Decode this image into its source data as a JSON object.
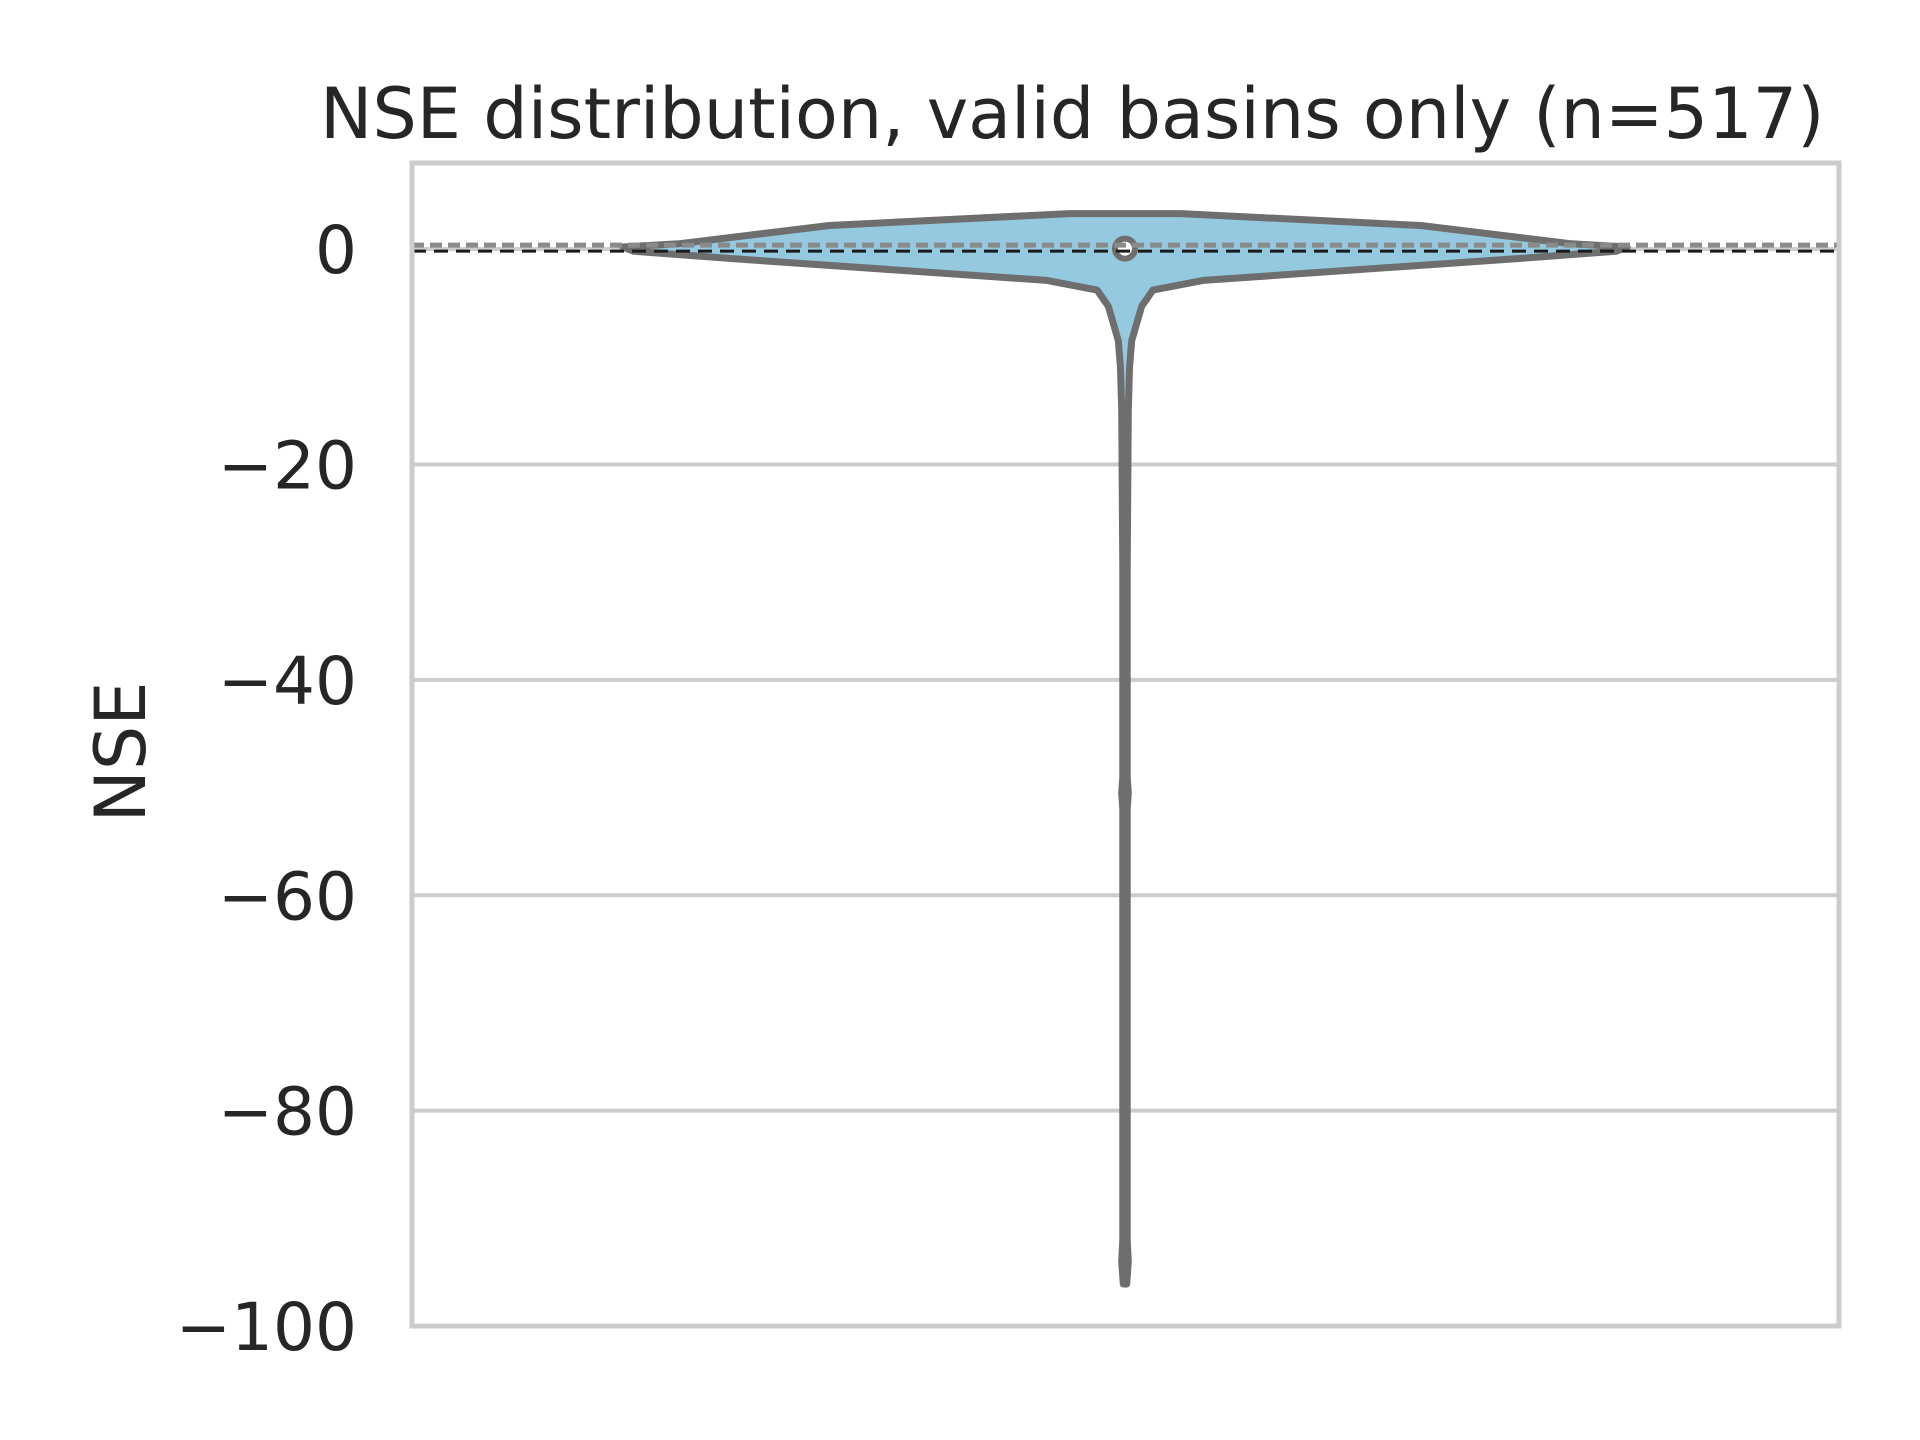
{
  "chart_data": {
    "type": "violin",
    "title": "NSE distribution, valid basins only (n=517)",
    "xlabel": "",
    "ylabel": "NSE",
    "ylim": [
      -100,
      8
    ],
    "yticks": [
      0,
      -20,
      -40,
      -60,
      -80,
      -100
    ],
    "ytick_labels": [
      "0",
      "−20",
      "−40",
      "−60",
      "−80",
      "−100"
    ],
    "grid": true,
    "reference_line": 0,
    "data_range": [
      -96.1,
      3.3
    ],
    "median": 0.05,
    "quartiles": [
      -0.3,
      0.4
    ],
    "density_profile": [
      {
        "y": 3.3,
        "rel_width": 0.1
      },
      {
        "y": 2.2,
        "rel_width": 0.53
      },
      {
        "y": 0.5,
        "rel_width": 0.8
      },
      {
        "y": 0.2,
        "rel_width": 0.9
      },
      {
        "y": -0.2,
        "rel_width": 0.88
      },
      {
        "y": -0.9,
        "rel_width": 0.7
      },
      {
        "y": -2.9,
        "rel_width": 0.14
      },
      {
        "y": -3.8,
        "rel_width": 0.05
      },
      {
        "y": -5.3,
        "rel_width": 0.03
      },
      {
        "y": -8.5,
        "rel_width": 0.012
      },
      {
        "y": -11.0,
        "rel_width": 0.008
      },
      {
        "y": -15.0,
        "rel_width": 0.006
      },
      {
        "y": -30.0,
        "rel_width": 0.004
      },
      {
        "y": -49.0,
        "rel_width": 0.004
      },
      {
        "y": -50.5,
        "rel_width": 0.006
      },
      {
        "y": -52.0,
        "rel_width": 0.004
      },
      {
        "y": -70.0,
        "rel_width": 0.004
      },
      {
        "y": -92.0,
        "rel_width": 0.004
      },
      {
        "y": -94.0,
        "rel_width": 0.006
      },
      {
        "y": -96.1,
        "rel_width": 0.003
      }
    ],
    "colors": {
      "fill": "#94c9e0",
      "outline": "#6e6e6e",
      "grid": "#cccccc",
      "reference_line": "#1a1a1a"
    }
  }
}
